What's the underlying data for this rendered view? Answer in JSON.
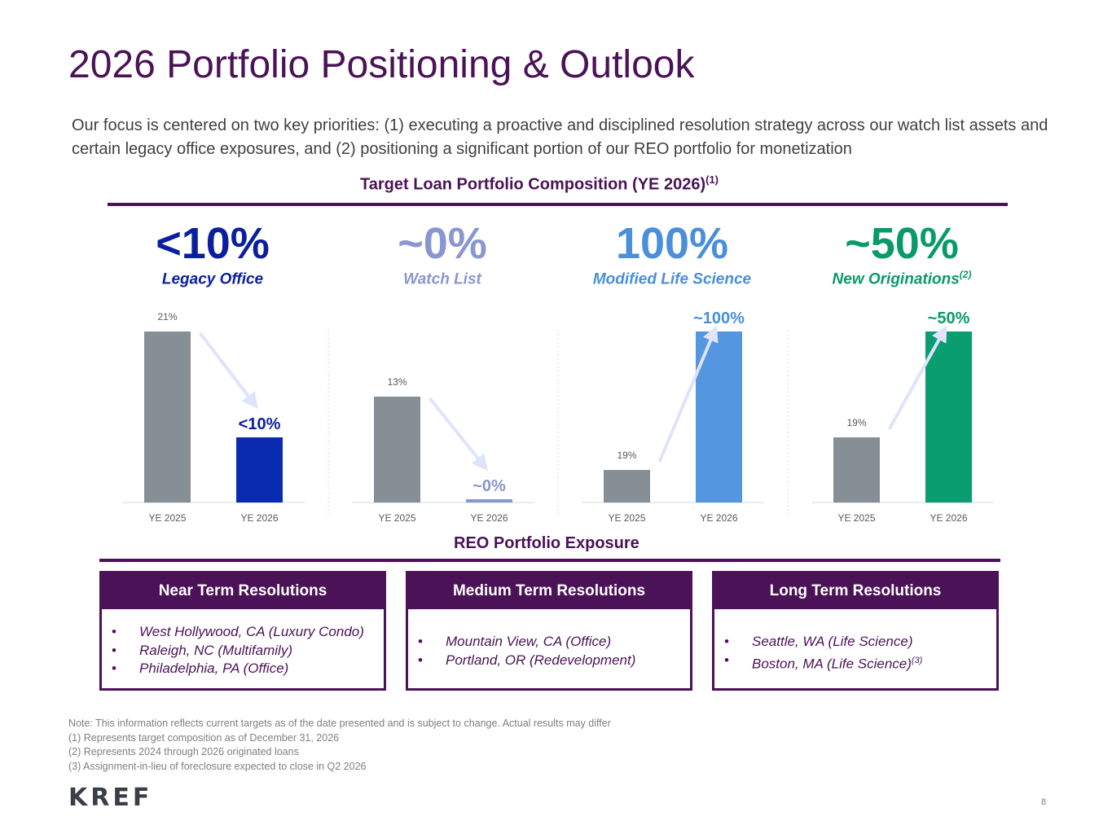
{
  "title": "2026 Portfolio Positioning & Outlook",
  "intro": "Our focus is centered on two key priorities: (1) executing a proactive and disciplined resolution strategy across our watch list assets and certain legacy office exposures, and (2) positioning a significant portion of our REO portfolio for monetization",
  "target_section": {
    "title": "Target Loan Portfolio Composition (YE 2026)",
    "footnote_ref": "(1)"
  },
  "kpis": [
    {
      "value": "<10%",
      "label": "Legacy Office",
      "label_sup": "",
      "color": "#0b1f9e"
    },
    {
      "value": "~0%",
      "label": "Watch List",
      "label_sup": "",
      "color": "#8a96cf"
    },
    {
      "value": "100%",
      "label": "Modified Life Science",
      "label_sup": "",
      "color": "#4a8fd9"
    },
    {
      "value": "~50%",
      "label": "New Originations",
      "label_sup": "(2)",
      "color": "#0a9a6a"
    }
  ],
  "chart_data": [
    {
      "type": "bar",
      "categories": [
        "YE 2025",
        "YE 2026"
      ],
      "values": [
        21,
        8
      ],
      "data_labels": [
        "21%",
        "<10%"
      ],
      "colors": [
        "#868f96",
        "#0a2bb0"
      ],
      "ylim": [
        0,
        21
      ]
    },
    {
      "type": "bar",
      "categories": [
        "YE 2025",
        "YE 2026"
      ],
      "values": [
        13,
        0.4
      ],
      "data_labels": [
        "13%",
        "~0%"
      ],
      "colors": [
        "#868f96",
        "#8a96cf"
      ],
      "ylim": [
        0,
        21
      ]
    },
    {
      "type": "bar",
      "categories": [
        "YE 2025",
        "YE 2026"
      ],
      "values": [
        4,
        21
      ],
      "data_labels": [
        "19%",
        "~100%"
      ],
      "colors": [
        "#868f96",
        "#5596e0"
      ],
      "ylim": [
        0,
        21
      ]
    },
    {
      "type": "bar",
      "categories": [
        "YE 2025",
        "YE 2026"
      ],
      "values": [
        8,
        21
      ],
      "data_labels": [
        "19%",
        "~50%"
      ],
      "colors": [
        "#868f96",
        "#0a9d70"
      ],
      "ylim": [
        0,
        21
      ]
    }
  ],
  "reo_section": {
    "title": "REO Portfolio Exposure"
  },
  "resolutions": [
    {
      "title": "Near Term Resolutions",
      "items": [
        {
          "text": "West Hollywood, CA (Luxury Condo)",
          "sup": ""
        },
        {
          "text": "Raleigh, NC (Multifamily)",
          "sup": ""
        },
        {
          "text": "Philadelphia, PA (Office)",
          "sup": ""
        }
      ]
    },
    {
      "title": "Medium Term Resolutions",
      "items": [
        {
          "text": "Mountain View, CA (Office)",
          "sup": ""
        },
        {
          "text": "Portland, OR (Redevelopment)",
          "sup": ""
        }
      ]
    },
    {
      "title": "Long Term Resolutions",
      "items": [
        {
          "text": "Seattle, WA (Life Science)",
          "sup": ""
        },
        {
          "text": "Boston, MA (Life Science)",
          "sup": "(3)"
        }
      ]
    }
  ],
  "bullet_char": "•",
  "notes": [
    "Note: This information reflects current targets as of the date presented and is subject to change. Actual results may differ",
    "(1) Represents target composition as of December 31, 2026",
    "(2) Represents 2024 through 2026 originated loans",
    "(3) Assignment-in-lieu of foreclosure expected to close in Q2 2026"
  ],
  "logo": "KREF",
  "page_number": "8"
}
